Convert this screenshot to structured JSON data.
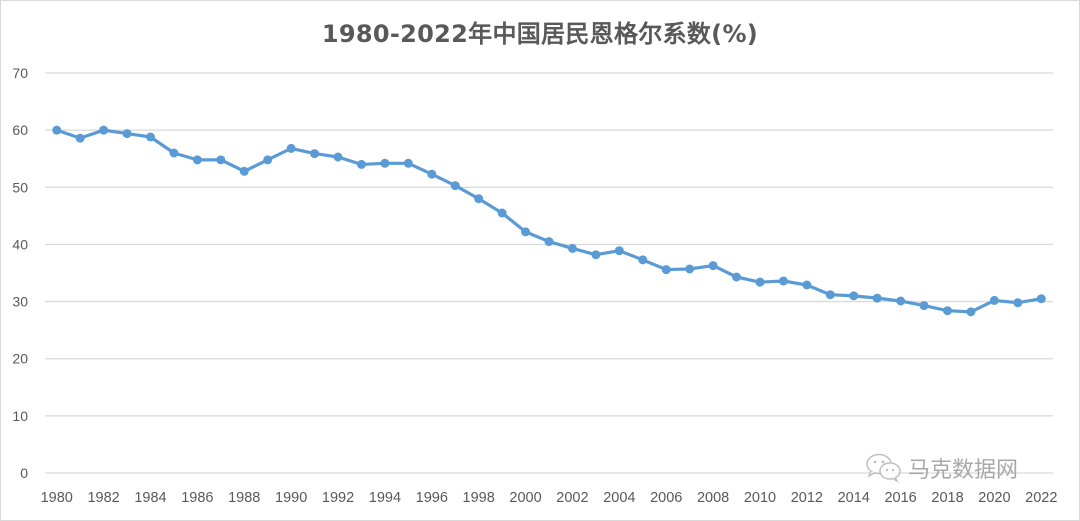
{
  "chart_data": {
    "type": "line",
    "title": "1980-2022年中国居民恩格尔系数(%)",
    "xlabel": "",
    "ylabel": "",
    "ylim": [
      0,
      70
    ],
    "yticks": [
      0,
      10,
      20,
      30,
      40,
      50,
      60,
      70
    ],
    "grid": true,
    "legend": "none",
    "x": [
      1980,
      1981,
      1982,
      1983,
      1984,
      1985,
      1986,
      1987,
      1988,
      1989,
      1990,
      1991,
      1992,
      1993,
      1994,
      1995,
      1996,
      1997,
      1998,
      1999,
      2000,
      2001,
      2002,
      2003,
      2004,
      2005,
      2006,
      2007,
      2008,
      2009,
      2010,
      2011,
      2012,
      2013,
      2014,
      2015,
      2016,
      2017,
      2018,
      2019,
      2020,
      2021,
      2022
    ],
    "xtick_labels": [
      "1980",
      "1982",
      "1984",
      "1986",
      "1988",
      "1990",
      "1992",
      "1994",
      "1996",
      "1998",
      "2000",
      "2002",
      "2004",
      "2006",
      "2008",
      "2010",
      "2012",
      "2014",
      "2016",
      "2018",
      "2020",
      "2022"
    ],
    "series": [
      {
        "name": "恩格尔系数",
        "color": "#5B9BD5",
        "values": [
          60.0,
          58.6,
          60.0,
          59.4,
          58.8,
          56.0,
          54.8,
          54.8,
          52.8,
          54.8,
          56.8,
          55.9,
          55.3,
          54.0,
          54.2,
          54.2,
          52.3,
          50.3,
          48.0,
          45.5,
          42.2,
          40.5,
          39.3,
          38.2,
          38.9,
          37.3,
          35.6,
          35.7,
          36.3,
          34.3,
          33.4,
          33.6,
          32.9,
          31.2,
          31.0,
          30.6,
          30.1,
          29.3,
          28.4,
          28.2,
          30.2,
          29.8,
          30.5
        ]
      }
    ]
  },
  "watermark": {
    "text": "马克数据网",
    "icon": "wechat-icon"
  },
  "colors": {
    "line": "#5B9BD5",
    "grid": "#d9d9d9",
    "text": "#595959",
    "border": "#d9d9d9"
  }
}
